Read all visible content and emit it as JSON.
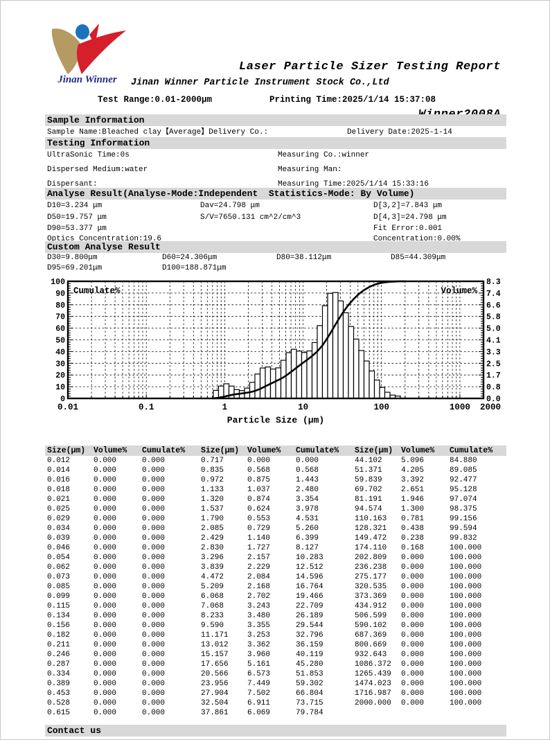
{
  "header": {
    "logo_text": "Jinan Winner",
    "title_line1": "Laser Particle Sizer Testing Report",
    "title_line2": "Winner2008A",
    "company": "Jinan Winner Particle Instrument Stock Co.,Ltd",
    "test_range": "Test Range:0.01-2000μm",
    "printing_time": "Printing Time:2025/1/14 15:37:08",
    "logo_colors": {
      "tan": "#b59a63",
      "red": "#d51f2b",
      "blue": "#1b74bb",
      "text": "#1f2a8a"
    }
  },
  "sample_info": {
    "section_title": "Sample Information",
    "name_line": "Sample Name:Bleached clay【Average】Delivery Co.:",
    "delivery_date": "Delivery Date:2025-1-14"
  },
  "testing_info": {
    "section_title": "Testing Information",
    "left": [
      "UltraSonic Time:0s",
      "Dispersed Medium:water",
      "Dispersant:"
    ],
    "right": [
      "Measuring Co.:winner",
      "Measuring Man:",
      "Measuring Time:2025/1/14 15:33:16"
    ]
  },
  "analyse_result": {
    "section_title": "Analyse Result(Analyse-Mode:Independent  Statistics-Mode: By Volume)",
    "rows": [
      [
        "D10=3.234 μm",
        "Dav=24.798 μm",
        "D[3,2]=7.843 μm"
      ],
      [
        "D50=19.757 μm",
        "S/V=7650.131 cm^2/cm^3",
        "D[4,3]=24.798 μm"
      ],
      [
        "D90=53.377 μm",
        "",
        "Fit Error:0.001"
      ],
      [
        "Optics Concentration:19.6",
        "",
        "Concentration:0.00%"
      ]
    ]
  },
  "custom_result": {
    "section_title": "Custom Analyse Result",
    "rows": [
      [
        "D30=9.800μm",
        "D60=24.306μm",
        "D80=38.112μm",
        "D85=44.309μm"
      ],
      [
        "D95=69.201μm",
        "D100=188.871μm",
        "",
        ""
      ]
    ]
  },
  "chart_data": {
    "type": "histogram-with-cumulative-line",
    "xlabel": "Particle Size (μm)",
    "x_scale": "log",
    "x_range": [
      0.01,
      2000
    ],
    "x_tick_labels": [
      "0.01",
      "0.1",
      "1",
      "10",
      "100",
      "1000",
      "2000"
    ],
    "x_tick_values": [
      0.01,
      0.1,
      1,
      10,
      100,
      1000,
      2000
    ],
    "left_axis": {
      "label": "Cumulate%",
      "range": [
        0,
        100
      ],
      "tick_step": 10
    },
    "right_axis": {
      "label": "Volume%",
      "range": [
        0,
        8.3
      ],
      "tick_labels_top_to_bottom": [
        "8.3",
        "7.4",
        "6.6",
        "5.8",
        "5.0",
        "4.1",
        "3.3",
        "2.5",
        "1.7",
        "0.8",
        "0.0"
      ]
    },
    "grid": true,
    "sizes": [
      0.012,
      0.014,
      0.016,
      0.018,
      0.021,
      0.025,
      0.029,
      0.034,
      0.039,
      0.046,
      0.054,
      0.062,
      0.073,
      0.085,
      0.099,
      0.115,
      0.134,
      0.156,
      0.182,
      0.211,
      0.246,
      0.287,
      0.334,
      0.389,
      0.453,
      0.528,
      0.615,
      0.717,
      0.835,
      0.972,
      1.133,
      1.32,
      1.537,
      1.79,
      2.085,
      2.429,
      2.83,
      3.296,
      3.839,
      4.472,
      5.209,
      6.068,
      7.068,
      8.233,
      9.59,
      11.171,
      13.012,
      15.157,
      17.656,
      20.566,
      23.956,
      27.904,
      32.504,
      37.861,
      44.102,
      51.371,
      59.839,
      69.702,
      81.191,
      94.574,
      110.163,
      128.321,
      149.472,
      174.11,
      202.809,
      236.238,
      275.177,
      320.535,
      373.369,
      434.912,
      506.599,
      590.102,
      687.369,
      800.669,
      932.643,
      1086.372,
      1265.439,
      1474.023,
      1716.987,
      2000.0
    ],
    "volumes": [
      0,
      0,
      0,
      0,
      0,
      0,
      0,
      0,
      0,
      0,
      0,
      0,
      0,
      0,
      0,
      0,
      0,
      0,
      0,
      0,
      0,
      0,
      0,
      0,
      0,
      0,
      0,
      0,
      0.568,
      0.875,
      1.037,
      0.874,
      0.624,
      0.553,
      0.729,
      1.14,
      1.727,
      2.157,
      2.229,
      2.084,
      2.168,
      2.702,
      3.243,
      3.48,
      3.355,
      3.253,
      3.362,
      3.96,
      5.161,
      6.573,
      7.449,
      7.502,
      6.911,
      6.069,
      5.096,
      4.205,
      3.392,
      2.651,
      1.946,
      1.3,
      0.781,
      0.438,
      0.238,
      0.168,
      0,
      0,
      0,
      0,
      0,
      0,
      0,
      0,
      0,
      0,
      0,
      0,
      0,
      0,
      0,
      0
    ],
    "cumulates": [
      0,
      0,
      0,
      0,
      0,
      0,
      0,
      0,
      0,
      0,
      0,
      0,
      0,
      0,
      0,
      0,
      0,
      0,
      0,
      0,
      0,
      0,
      0,
      0,
      0,
      0,
      0,
      0,
      0.568,
      1.443,
      2.48,
      3.354,
      3.978,
      4.531,
      5.26,
      6.399,
      8.127,
      10.283,
      12.512,
      14.596,
      16.764,
      19.466,
      22.709,
      26.189,
      29.544,
      32.796,
      36.159,
      40.119,
      45.28,
      51.853,
      59.302,
      66.804,
      73.715,
      79.784,
      84.88,
      89.085,
      92.477,
      95.128,
      97.074,
      98.375,
      99.156,
      99.594,
      99.832,
      100.0,
      100.0,
      100.0,
      100.0,
      100.0,
      100.0,
      100.0,
      100.0,
      100.0,
      100.0,
      100.0,
      100.0,
      100.0,
      100.0,
      100.0,
      100.0,
      100.0
    ]
  },
  "table": {
    "headers": [
      "Size(μm)",
      "Volume%",
      "Cumulate%"
    ],
    "groups": 3,
    "rows_per_group": 27
  },
  "footer": {
    "contact": "Contact us"
  }
}
